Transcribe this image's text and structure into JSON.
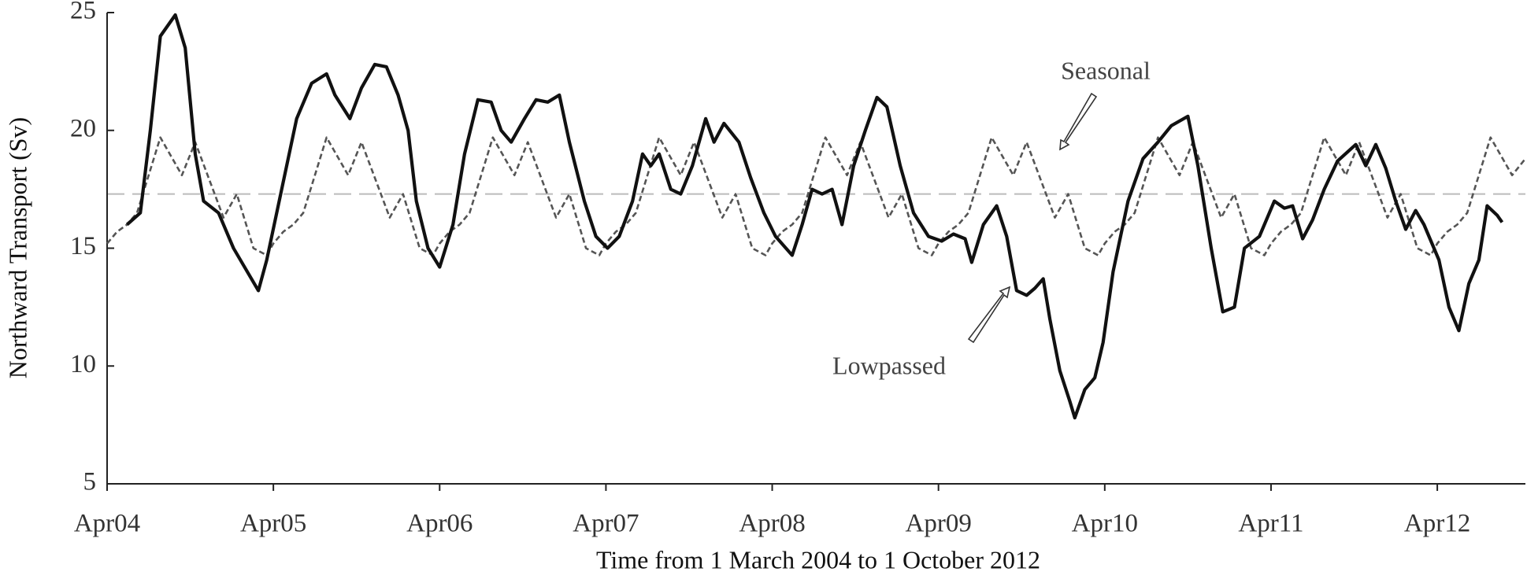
{
  "chart_data": {
    "type": "line",
    "xlabel": "Time from 1 March 2004 to 1 October 2012",
    "ylabel": "Northward Transport (Sv)",
    "xlim": [
      2004.25,
      2012.78
    ],
    "ylim": [
      5,
      25
    ],
    "yticks": [
      5,
      10,
      15,
      20,
      25
    ],
    "xticks": [
      {
        "value": 2004.25,
        "label": "Apr04"
      },
      {
        "value": 2005.25,
        "label": "Apr05"
      },
      {
        "value": 2006.25,
        "label": "Apr06"
      },
      {
        "value": 2007.25,
        "label": "Apr07"
      },
      {
        "value": 2008.25,
        "label": "Apr08"
      },
      {
        "value": 2009.25,
        "label": "Apr09"
      },
      {
        "value": 2010.25,
        "label": "Apr10"
      },
      {
        "value": 2011.25,
        "label": "Apr11"
      },
      {
        "value": 2012.25,
        "label": "Apr12"
      }
    ],
    "hline": {
      "value": 17.3,
      "color": "#bbbbbb"
    },
    "annotations": [
      {
        "text": "Seasonal"
      },
      {
        "text": "Lowpassed"
      }
    ],
    "series": [
      {
        "name": "Lowpassed",
        "color": "#111111",
        "dash": false,
        "x": [
          2004.37,
          2004.45,
          2004.51,
          2004.57,
          2004.66,
          2004.72,
          2004.78,
          2004.83,
          2004.92,
          2005.01,
          2005.16,
          2005.21,
          2005.3,
          2005.39,
          2005.48,
          2005.57,
          2005.62,
          2005.71,
          2005.78,
          2005.86,
          2005.93,
          2006.0,
          2006.06,
          2006.11,
          2006.18,
          2006.25,
          2006.33,
          2006.4,
          2006.48,
          2006.56,
          2006.62,
          2006.68,
          2006.76,
          2006.83,
          2006.9,
          2006.97,
          2007.03,
          2007.12,
          2007.19,
          2007.26,
          2007.33,
          2007.41,
          2007.47,
          2007.52,
          2007.57,
          2007.64,
          2007.7,
          2007.77,
          2007.85,
          2007.9,
          2007.96,
          2008.05,
          2008.12,
          2008.2,
          2008.27,
          2008.37,
          2008.43,
          2008.49,
          2008.55,
          2008.61,
          2008.67,
          2008.74,
          2008.81,
          2008.88,
          2008.94,
          2009.02,
          2009.1,
          2009.19,
          2009.27,
          2009.34,
          2009.41,
          2009.45,
          2009.52,
          2009.6,
          2009.66,
          2009.72,
          2009.78,
          2009.83,
          2009.88,
          2009.92,
          2009.98,
          2010.04,
          2010.07,
          2010.13,
          2010.19,
          2010.24,
          2010.3,
          2010.39,
          2010.48,
          2010.57,
          2010.65,
          2010.75,
          2010.81,
          2010.89,
          2010.96,
          2011.03,
          2011.09,
          2011.18,
          2011.27,
          2011.33,
          2011.38,
          2011.44,
          2011.5,
          2011.57,
          2011.65,
          2011.76,
          2011.82,
          2011.88,
          2011.94,
          2012.0,
          2012.06,
          2012.12,
          2012.17,
          2012.26,
          2012.32,
          2012.38,
          2012.44,
          2012.5,
          2012.55,
          2012.61,
          2012.64
        ],
        "values": [
          16,
          16.5,
          20,
          24,
          24.9,
          23.5,
          19,
          17,
          16.5,
          15,
          13.2,
          14.5,
          17.5,
          20.5,
          22,
          22.4,
          21.5,
          20.5,
          21.8,
          22.8,
          22.7,
          21.5,
          20,
          17,
          15,
          14.2,
          16,
          19,
          21.3,
          21.2,
          20,
          19.5,
          20.5,
          21.3,
          21.2,
          21.5,
          19.5,
          17,
          15.5,
          15,
          15.5,
          17,
          19,
          18.5,
          19,
          17.5,
          17.3,
          18.5,
          20.5,
          19.5,
          20.3,
          19.5,
          18,
          16.5,
          15.5,
          14.7,
          16,
          17.5,
          17.3,
          17.5,
          16,
          18.5,
          20,
          21.4,
          21,
          18.5,
          16.5,
          15.5,
          15.3,
          15.6,
          15.4,
          14.4,
          16,
          16.8,
          15.5,
          13.2,
          13,
          13.3,
          13.7,
          12,
          9.8,
          8.5,
          7.8,
          9,
          9.5,
          11,
          14,
          17,
          18.8,
          19.5,
          20.2,
          20.6,
          18.5,
          15,
          12.3,
          12.5,
          15,
          15.5,
          17,
          16.7,
          16.8,
          15.4,
          16.2,
          17.5,
          18.7,
          19.4,
          18.5,
          19.4,
          18.4,
          17,
          15.8,
          16.6,
          16,
          14.5,
          12.5,
          11.5,
          13.5,
          14.5,
          16.8,
          16.4,
          16.1
        ]
      },
      {
        "name": "Seasonal",
        "color": "#555555",
        "dash": true,
        "x": [
          2004.25,
          2004.31,
          2004.37,
          2004.43,
          2004.57,
          2004.7,
          2004.78,
          2004.95,
          2005.03,
          2005.13,
          2005.21,
          2005.25,
          2005.31,
          2005.37,
          2005.43,
          2005.57,
          2005.7,
          2005.78,
          2005.95,
          2006.03,
          2006.13,
          2006.21,
          2006.25,
          2006.31,
          2006.37,
          2006.43,
          2006.57,
          2006.7,
          2006.78,
          2006.95,
          2007.03,
          2007.13,
          2007.21,
          2007.25,
          2007.31,
          2007.37,
          2007.43,
          2007.57,
          2007.7,
          2007.78,
          2007.95,
          2008.03,
          2008.13,
          2008.21,
          2008.25,
          2008.31,
          2008.37,
          2008.43,
          2008.57,
          2008.7,
          2008.78,
          2008.95,
          2009.03,
          2009.13,
          2009.21,
          2009.25,
          2009.31,
          2009.37,
          2009.43,
          2009.57,
          2009.7,
          2009.78,
          2009.95,
          2010.03,
          2010.13,
          2010.21,
          2010.25,
          2010.31,
          2010.37,
          2010.43,
          2010.57,
          2010.7,
          2010.78,
          2010.95,
          2011.03,
          2011.13,
          2011.21,
          2011.25,
          2011.31,
          2011.37,
          2011.43,
          2011.57,
          2011.7,
          2011.78,
          2011.95,
          2012.03,
          2012.13,
          2012.21,
          2012.25,
          2012.31,
          2012.37,
          2012.43,
          2012.57,
          2012.7,
          2012.78
        ],
        "values": [
          15.2,
          15.7,
          16,
          16.5,
          19.7,
          18.1,
          19.5,
          16.3,
          17.3,
          15,
          14.7,
          15.2,
          15.7,
          16,
          16.5,
          19.7,
          18.1,
          19.5,
          16.3,
          17.3,
          15,
          14.7,
          15.2,
          15.7,
          16,
          16.5,
          19.7,
          18.1,
          19.5,
          16.3,
          17.3,
          15,
          14.7,
          15.2,
          15.7,
          16,
          16.5,
          19.7,
          18.1,
          19.5,
          16.3,
          17.3,
          15,
          14.7,
          15.2,
          15.7,
          16,
          16.5,
          19.7,
          18.1,
          19.5,
          16.3,
          17.3,
          15,
          14.7,
          15.2,
          15.7,
          16,
          16.5,
          19.7,
          18.1,
          19.5,
          16.3,
          17.3,
          15,
          14.7,
          15.2,
          15.7,
          16,
          16.5,
          19.7,
          18.1,
          19.5,
          16.3,
          17.3,
          15,
          14.7,
          15.2,
          15.7,
          16,
          16.5,
          19.7,
          18.1,
          19.5,
          16.3,
          17.3,
          15,
          14.7,
          15.2,
          15.7,
          16,
          16.5,
          19.7,
          18.1,
          18.8
        ]
      }
    ]
  }
}
